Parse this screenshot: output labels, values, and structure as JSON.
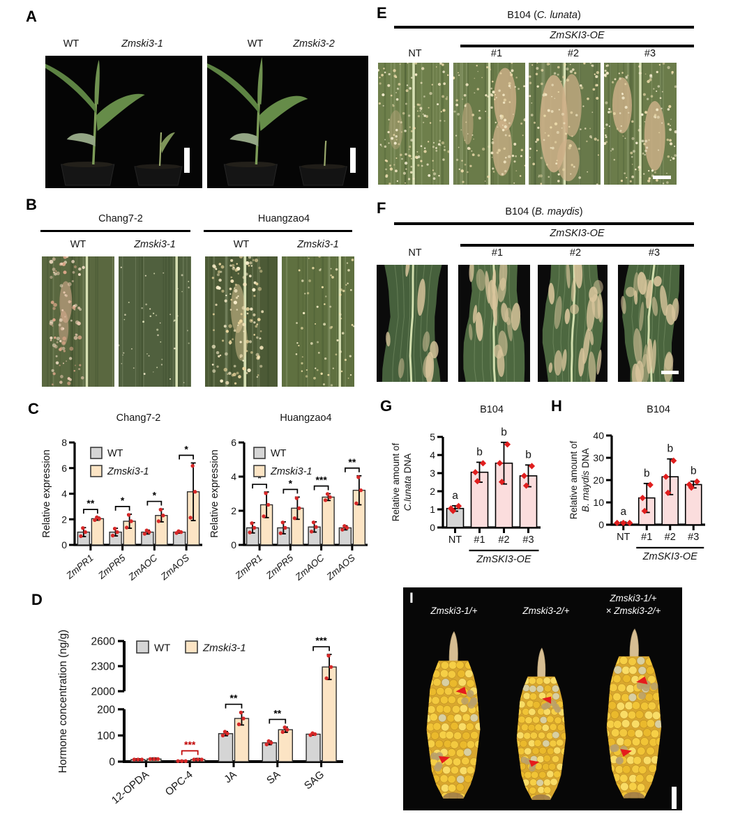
{
  "panels": {
    "A": {
      "letter": "A",
      "photos": [
        {
          "left_label": "WT",
          "right_label": "Zmski3-1"
        },
        {
          "left_label": "WT",
          "right_label": "Zmski3-2"
        }
      ]
    },
    "B": {
      "letter": "B",
      "groups": [
        {
          "title": "Chang7-2",
          "left_label": "WT",
          "right_label": "Zmski3-1"
        },
        {
          "title": "Huangzao4",
          "left_label": "WT",
          "right_label": "Zmski3-1"
        }
      ]
    },
    "C": {
      "letter": "C"
    },
    "D": {
      "letter": "D"
    },
    "E": {
      "letter": "E",
      "title_pre": "B104 (",
      "title_italic": "C. lunata",
      "title_post": ")",
      "oe_label": "ZmSKI3-OE",
      "cols": [
        "NT",
        "#1",
        "#2",
        "#3"
      ]
    },
    "F": {
      "letter": "F",
      "title_pre": "B104 (",
      "title_italic": "B. maydis",
      "title_post": ")",
      "oe_label": "ZmSKI3-OE",
      "cols": [
        "NT",
        "#1",
        "#2",
        "#3"
      ]
    },
    "G": {
      "letter": "G"
    },
    "H": {
      "letter": "H"
    },
    "I": {
      "letter": "I",
      "label1": "Zmski3-1/+",
      "label2": "Zmski3-2/+",
      "label3_line1": "Zmski3-1/+",
      "label3_line2": "× Zmski3-2/+"
    }
  },
  "chart_data": [
    {
      "id": "c1",
      "type": "bar",
      "title": "Chang7-2",
      "ylabel": "Relative expression",
      "ylim": [
        0,
        8
      ],
      "yticks": [
        0,
        2,
        4,
        6,
        8
      ],
      "categories": [
        "ZmPR1",
        "ZmPR5",
        "ZmAOC",
        "ZmAOS"
      ],
      "categories_italic": true,
      "series": [
        {
          "name": "WT",
          "italic": false,
          "color": "#d5d5d5",
          "values": [
            1.0,
            1.0,
            1.0,
            1.0
          ],
          "errors": [
            0.35,
            0.3,
            0.15,
            0.08
          ]
        },
        {
          "name": "Zmski3-1",
          "italic": true,
          "color": "#fce4c4",
          "values": [
            2.05,
            1.85,
            2.3,
            4.15
          ],
          "errors": [
            0.12,
            0.55,
            0.5,
            2.25
          ]
        }
      ],
      "sig": [
        "**",
        "*",
        "*",
        "*"
      ],
      "sig_colors": [
        "#000000",
        "#000000",
        "#000000",
        "#000000"
      ],
      "legend": "stack",
      "point_color": "#d62828"
    },
    {
      "id": "c2",
      "type": "bar",
      "title": "Huangzao4",
      "ylabel": "Relative expression",
      "ylim": [
        0,
        6
      ],
      "yticks": [
        0,
        2,
        4,
        6
      ],
      "categories": [
        "ZmPR1",
        "ZmPR5",
        "ZmAOC",
        "ZmAOS"
      ],
      "categories_italic": true,
      "series": [
        {
          "name": "WT",
          "italic": false,
          "color": "#d5d5d5",
          "values": [
            1.0,
            1.0,
            1.05,
            1.0
          ],
          "errors": [
            0.3,
            0.35,
            0.3,
            0.12
          ]
        },
        {
          "name": "Zmski3-1",
          "italic": true,
          "color": "#fce4c4",
          "values": [
            2.35,
            2.15,
            2.8,
            3.2
          ],
          "errors": [
            0.75,
            0.65,
            0.2,
            0.85
          ]
        }
      ],
      "sig": [
        "*",
        "*",
        "***",
        "**"
      ],
      "sig_colors": [
        "#000000",
        "#000000",
        "#000000",
        "#000000"
      ],
      "legend": "stack",
      "point_color": "#d62828"
    },
    {
      "id": "d",
      "type": "bar_broken",
      "ylabel": "Hormone concentration (ng/g)",
      "categories": [
        "12-OPDA",
        "OPC-4",
        "JA",
        "SA",
        "SAG"
      ],
      "categories_italic": false,
      "segments": {
        "lower": {
          "lim": [
            0,
            200
          ],
          "ticks": [
            0,
            100,
            200
          ]
        },
        "upper": {
          "lim": [
            2000,
            2600
          ],
          "ticks": [
            2000,
            2300,
            2600
          ]
        }
      },
      "series": [
        {
          "name": "WT",
          "italic": false,
          "color": "#d5d5d5",
          "values": [
            8,
            2,
            107,
            72,
            105
          ],
          "errors": [
            3,
            2,
            8,
            7,
            4
          ]
        },
        {
          "name": "Zmski3-1",
          "italic": true,
          "color": "#fce4c4",
          "values": [
            10,
            8,
            165,
            122,
            2290
          ],
          "errors": [
            4,
            4,
            25,
            10,
            150
          ]
        }
      ],
      "sig": [
        null,
        "***",
        "**",
        "**",
        "***"
      ],
      "sig_colors": [
        null,
        "#c00000",
        "#000000",
        "#000000",
        "#000000"
      ],
      "legend": "row",
      "point_color": "#d62828"
    },
    {
      "id": "g",
      "type": "bar_single",
      "title": "B104",
      "ylabel_line1": "Relative amount of",
      "ylabel_line2_italic": "C.lunata",
      "ylabel_line2_rest": " DNA",
      "ylim": [
        0,
        5
      ],
      "yticks": [
        0,
        1,
        2,
        3,
        4,
        5
      ],
      "categories": [
        "NT",
        "#1",
        "#2",
        "#3"
      ],
      "values": [
        1.05,
        3.05,
        3.55,
        2.85
      ],
      "errors": [
        0.15,
        0.55,
        1.15,
        0.6
      ],
      "bar_colors": [
        "#d5d5d5",
        "#fbdddd",
        "#fbdddd",
        "#fbdddd"
      ],
      "letters": [
        "a",
        "b",
        "b",
        "b"
      ],
      "group_label": "ZmSKI3-OE",
      "group_span": [
        1,
        3
      ],
      "point_color": "#e01e1e"
    },
    {
      "id": "h",
      "type": "bar_single",
      "title": "B104",
      "ylabel_line1": "Relative amount of",
      "ylabel_line2_italic": "B. maydis",
      "ylabel_line2_rest": " DNA",
      "ylim": [
        0,
        40
      ],
      "yticks": [
        0,
        10,
        20,
        30,
        40
      ],
      "categories": [
        "NT",
        "#1",
        "#2",
        "#3"
      ],
      "values": [
        0.8,
        12,
        21.5,
        18
      ],
      "errors": [
        0.4,
        6.5,
        8,
        1.5
      ],
      "bar_colors": [
        "#d5d5d5",
        "#fbdddd",
        "#fbdddd",
        "#fbdddd"
      ],
      "letters": [
        "a",
        "b",
        "b",
        "b"
      ],
      "group_label": "ZmSKI3-OE",
      "group_span": [
        1,
        3
      ],
      "point_color": "#e01e1e"
    }
  ]
}
